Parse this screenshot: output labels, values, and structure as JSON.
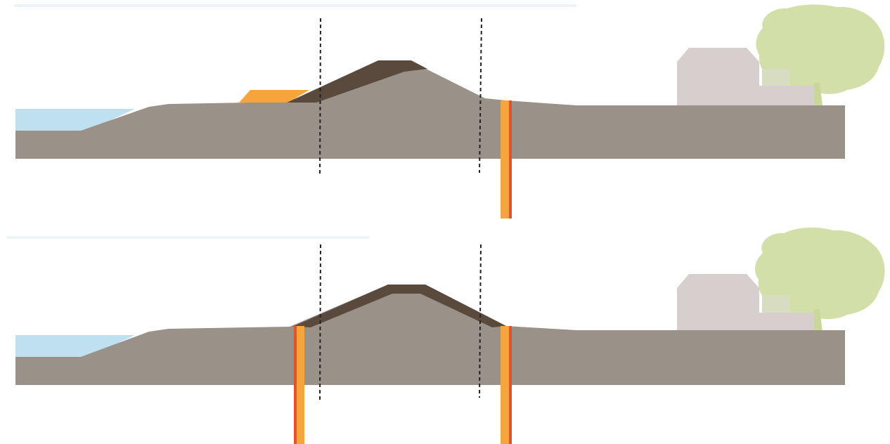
{
  "diagram": {
    "kind": "dike cross-section comparison",
    "panels": [
      {
        "id": "top",
        "features": [
          "water",
          "ground",
          "dike-core",
          "clay-cover-outer-slope",
          "berm-outer-toe",
          "sheet-pile-inner-toe",
          "house",
          "tree",
          "reference-line-left",
          "reference-line-right"
        ]
      },
      {
        "id": "bottom",
        "features": [
          "water",
          "ground",
          "dike-core",
          "clay-cover-both-slopes",
          "sheet-pile-outer-toe",
          "sheet-pile-inner-toe",
          "house",
          "tree",
          "reference-line-left",
          "reference-line-right"
        ]
      }
    ],
    "colors": {
      "water": "#bfe0ef",
      "ground": "#9a9189",
      "clay_cover": "#5a4a3e",
      "berm": "#f5a53b",
      "sheet_pile_fill": "#f5a53b",
      "sheet_pile_edge": "#e0532b",
      "house": "#d6cfcd",
      "tree": "#d3dfa8",
      "trunk": "#c9d79a",
      "reference_line": "#222222"
    }
  }
}
